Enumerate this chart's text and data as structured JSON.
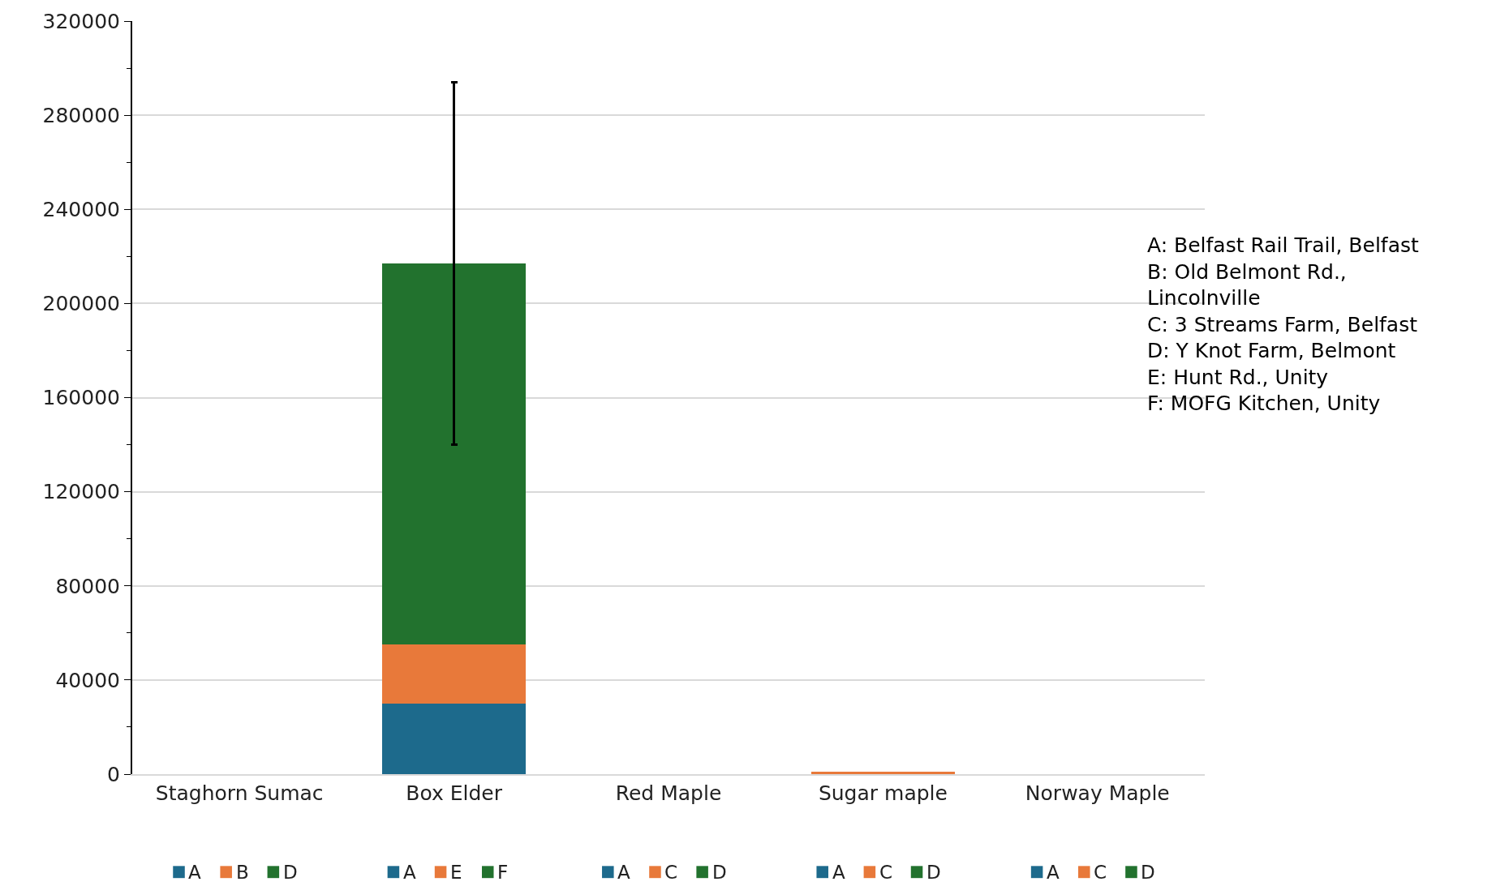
{
  "chart_data": {
    "type": "bar",
    "stacked": true,
    "categories": [
      "Staghorn Sumac",
      "Box Elder",
      "Red Maple",
      "Sugar maple",
      "Norway Maple"
    ],
    "series": [
      {
        "name": "A",
        "color": "#1d6a8c",
        "values": [
          0,
          30000,
          0,
          0,
          0
        ]
      },
      {
        "name": "B",
        "color": "#e8793a",
        "values": [
          0,
          null,
          null,
          null,
          null
        ]
      },
      {
        "name": "C",
        "color": "#e8793a",
        "values": [
          null,
          null,
          0,
          1000,
          0
        ]
      },
      {
        "name": "E",
        "color": "#e8793a",
        "values": [
          null,
          25000,
          null,
          null,
          null
        ]
      },
      {
        "name": "D",
        "color": "#22722e",
        "values": [
          0,
          null,
          0,
          0,
          0
        ]
      },
      {
        "name": "F",
        "color": "#22722e",
        "values": [
          null,
          162000,
          null,
          null,
          null
        ],
        "errors": [
          null,
          77000,
          null,
          null,
          null
        ]
      }
    ],
    "ylim": [
      0,
      320000
    ],
    "yticks": [
      0,
      40000,
      80000,
      120000,
      160000,
      200000,
      240000,
      280000,
      320000
    ],
    "grid": "y",
    "legend": "bottom",
    "annotations": [
      "A: Belfast Rail Trail, Belfast\nB: Old Belmont Rd.,\nLincolnville\nC: 3 Streams Farm, Belfast\nD: Y Knot Farm, Belmont\nE: Hunt Rd., Unity\nF: MOFG Kitchen, Unity"
    ]
  }
}
